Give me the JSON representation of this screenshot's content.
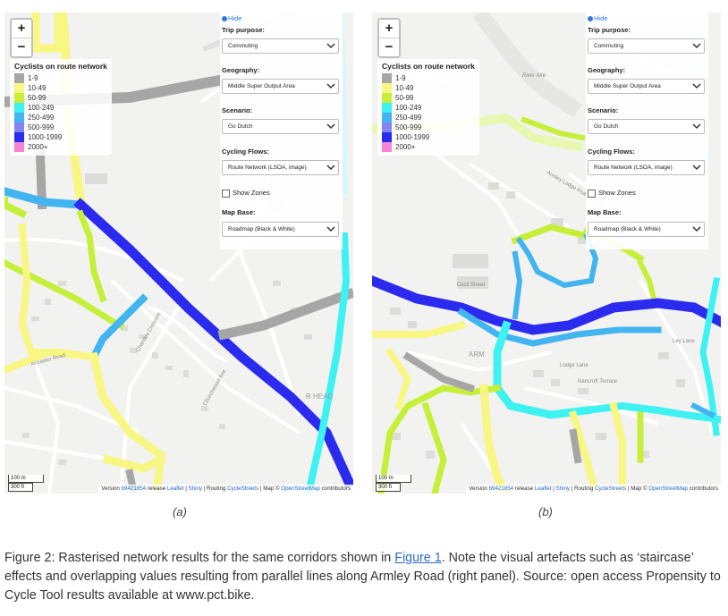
{
  "controls": {
    "hide_label": "Hide",
    "trip_purpose_label": "Trip purpose:",
    "trip_purpose_value": "Commuting",
    "geography_label": "Geography:",
    "geography_value": "Middle Super Output Area",
    "scenario_label": "Scenario:",
    "scenario_value": "Go Dutch",
    "cycling_flows_label": "Cycling Flows:",
    "cycling_flows_value": "Route Network (LSOA, image)",
    "show_zones_label": "Show Zones",
    "show_zones_checked": false,
    "map_base_label": "Map Base:",
    "map_base_value": "Roadmap (Black & White)"
  },
  "zoom": {
    "in_label": "+",
    "out_label": "−"
  },
  "legend": {
    "title": "Cyclists on route network",
    "items": [
      {
        "label": "1-9",
        "color": "#a6a6a6"
      },
      {
        "label": "10-49",
        "color": "#f8f783"
      },
      {
        "label": "50-99",
        "color": "#c6ef3a"
      },
      {
        "label": "100-249",
        "color": "#3ff2f2"
      },
      {
        "label": "250-499",
        "color": "#42b4f0"
      },
      {
        "label": "500-999",
        "color": "#8383f2"
      },
      {
        "label": "1000-1999",
        "color": "#2b2bf0"
      },
      {
        "label": "2000+",
        "color": "#f683d8"
      }
    ]
  },
  "scale": {
    "metric": "100 m",
    "imperial": "300 ft"
  },
  "attribution": {
    "version_prefix": "Version ",
    "version_hash": "b9421854",
    "release": "release",
    "leaflet": "Leaflet",
    "sep1": " | ",
    "shiny": "Shiny",
    "routing": " | Routing ",
    "cyclestreets": "CycleStreets",
    "map": " | Map © ",
    "osm": "OpenStreetMap",
    "contributors": " contributors"
  },
  "map_labels": {
    "a": [
      "Ancaster Road",
      "Chandos Crescent",
      "Churchwood Ave",
      "R HEAD"
    ],
    "b": [
      "River Aire",
      "Cecil Street",
      "ARM",
      "Nancroft Terrace",
      "Armley Lodge Road",
      "Ley Lane",
      "Lodge Lane"
    ]
  },
  "panel_labels": {
    "a": "(a)",
    "b": "(b)"
  },
  "caption": {
    "before_link": "Figure 2: Rasterised network results for the same corridors shown in ",
    "link": "Figure 1",
    "after_link": ". Note the visual artefacts such as ‘staircase’ effects and overlapping values resulting from parallel lines along Armley Road (right panel). Source: open access Propensity to Cycle Tool results available at www.pct.bike."
  },
  "colors": {
    "c1": "#a6a6a6",
    "c2": "#f8f783",
    "c3": "#c6ef3a",
    "c4": "#3ff2f2",
    "c5": "#42b4f0",
    "c6": "#8383f2",
    "c7": "#2b2bf0",
    "link": "#2a6ac8"
  }
}
